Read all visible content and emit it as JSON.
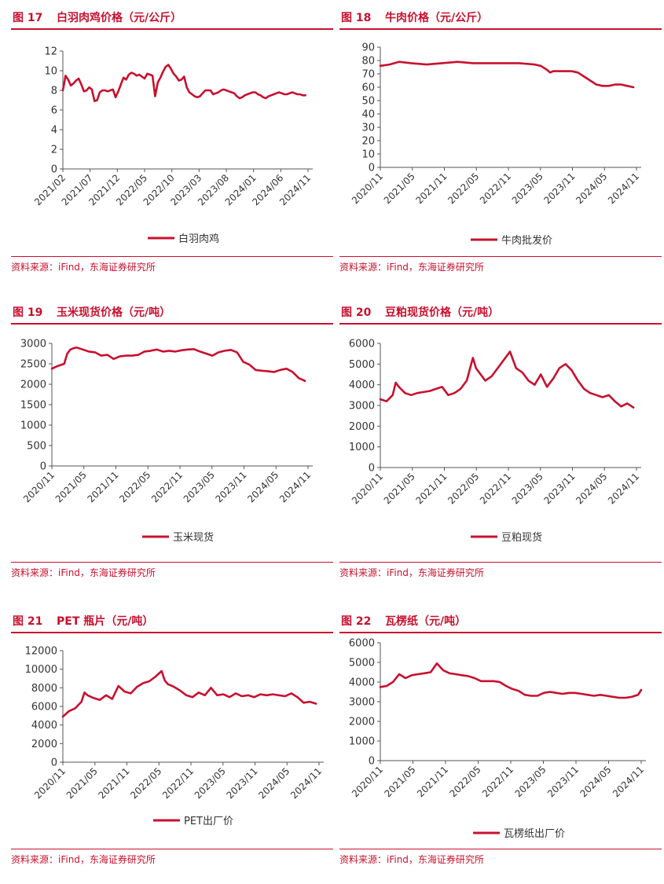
{
  "source_text": "资料来源：iFind，东海证券研究所",
  "colors": {
    "accent": "#c8102e",
    "axis": "#555555"
  },
  "chart_data": [
    {
      "id": "fig17",
      "number": "图 17",
      "title": "白羽肉鸡价格（元/公斤）",
      "type": "line",
      "ylim": [
        0,
        12
      ],
      "yticks": [
        0,
        2,
        4,
        6,
        8,
        10,
        12
      ],
      "xlabels": [
        "2021/02",
        "2021/07",
        "2021/12",
        "2022/05",
        "2022/10",
        "2023/03",
        "2023/08",
        "2024/01",
        "2024/06",
        "2024/11"
      ],
      "xrange": [
        0,
        9.3
      ],
      "series": [
        {
          "name": "白羽肉鸡",
          "x": [
            0,
            0.05,
            0.1,
            0.2,
            0.3,
            0.4,
            0.5,
            0.6,
            0.7,
            0.8,
            0.9,
            1.0,
            1.1,
            1.2,
            1.3,
            1.4,
            1.5,
            1.6,
            1.7,
            1.8,
            1.9,
            2.0,
            2.1,
            2.2,
            2.3,
            2.4,
            2.5,
            2.6,
            2.7,
            2.8,
            2.9,
            3.0,
            3.1,
            3.2,
            3.3,
            3.4,
            3.5,
            3.6,
            3.7,
            3.8,
            3.9,
            4.0,
            4.1,
            4.2,
            4.3,
            4.4,
            4.5,
            4.6,
            4.7,
            4.8,
            4.9,
            5.0,
            5.1,
            5.2,
            5.3,
            5.4,
            5.5,
            5.6,
            5.7,
            5.8,
            5.9,
            6.0,
            6.1,
            6.2,
            6.3,
            6.4,
            6.5,
            6.6,
            6.7,
            6.8,
            6.9,
            7.0,
            7.1,
            7.2,
            7.3,
            7.4,
            7.5,
            7.6,
            7.7,
            7.8,
            7.9,
            8.0,
            8.1,
            8.2,
            8.3,
            8.4,
            8.5,
            8.6,
            8.7,
            8.8,
            8.9,
            9.0,
            9.1,
            9.2
          ],
          "y": [
            8.0,
            8.7,
            9.5,
            9.1,
            8.5,
            8.7,
            9.0,
            9.2,
            8.6,
            7.9,
            8.0,
            8.3,
            8.1,
            6.9,
            7.0,
            7.8,
            8.0,
            8.0,
            7.9,
            8.0,
            8.1,
            7.3,
            7.9,
            8.6,
            9.3,
            9.1,
            9.6,
            9.8,
            9.7,
            9.5,
            9.6,
            9.4,
            9.2,
            9.7,
            9.6,
            9.5,
            7.4,
            8.8,
            9.3,
            9.9,
            10.4,
            10.6,
            10.2,
            9.7,
            9.4,
            9.0,
            9.1,
            9.4,
            8.3,
            7.8,
            7.6,
            7.4,
            7.3,
            7.4,
            7.7,
            8.0,
            8.0,
            8.0,
            7.6,
            7.7,
            7.8,
            8.0,
            8.1,
            8.0,
            7.9,
            7.8,
            7.7,
            7.4,
            7.2,
            7.3,
            7.5,
            7.6,
            7.7,
            7.8,
            7.8,
            7.6,
            7.5,
            7.3,
            7.2,
            7.4,
            7.5,
            7.6,
            7.7,
            7.8,
            7.7,
            7.6,
            7.6,
            7.7,
            7.8,
            7.7,
            7.6,
            7.6,
            7.5,
            7.5
          ]
        }
      ]
    },
    {
      "id": "fig18",
      "number": "图 18",
      "title": "牛肉价格（元/公斤）",
      "type": "line",
      "ylim": [
        0,
        90
      ],
      "yticks": [
        0,
        10,
        20,
        30,
        40,
        50,
        60,
        70,
        80,
        90
      ],
      "xlabels": [
        "2020/11",
        "2021/05",
        "2021/11",
        "2022/05",
        "2022/11",
        "2023/05",
        "2023/11",
        "2024/05",
        "2024/11"
      ],
      "xrange": [
        0,
        8.3
      ],
      "series": [
        {
          "name": "牛肉批发价",
          "x": [
            0,
            0.3,
            0.6,
            1.0,
            1.5,
            2.0,
            2.5,
            3.0,
            3.5,
            4.0,
            4.5,
            5.0,
            5.2,
            5.4,
            5.5,
            5.6,
            5.8,
            6.0,
            6.2,
            6.4,
            6.6,
            6.8,
            7.0,
            7.2,
            7.4,
            7.6,
            7.8,
            8.0,
            8.2
          ],
          "y": [
            76,
            77,
            79,
            78,
            77,
            78,
            79,
            78,
            78,
            78,
            78,
            77,
            76,
            73,
            71,
            72,
            72,
            72,
            72,
            71,
            68,
            65,
            62,
            61,
            61,
            62,
            62,
            61,
            60
          ]
        }
      ]
    },
    {
      "id": "fig19",
      "number": "图 19",
      "title": "玉米现货价格（元/吨）",
      "type": "line",
      "ylim": [
        0,
        3000
      ],
      "yticks": [
        0,
        500,
        1000,
        1500,
        2000,
        2500,
        3000
      ],
      "xlabels": [
        "2020/11",
        "2021/05",
        "2021/11",
        "2022/05",
        "2022/11",
        "2023/05",
        "2023/11",
        "2024/05",
        "2024/11"
      ],
      "xrange": [
        0,
        8.3
      ],
      "series": [
        {
          "name": "玉米现货",
          "x": [
            0,
            0.2,
            0.4,
            0.5,
            0.6,
            0.7,
            0.8,
            1.0,
            1.2,
            1.4,
            1.6,
            1.8,
            2.0,
            2.2,
            2.4,
            2.6,
            2.8,
            3.0,
            3.2,
            3.4,
            3.6,
            3.8,
            4.0,
            4.2,
            4.4,
            4.6,
            4.8,
            5.0,
            5.2,
            5.4,
            5.6,
            5.8,
            6.0,
            6.2,
            6.4,
            6.6,
            6.8,
            7.0,
            7.2,
            7.4,
            7.6,
            7.8,
            8.0,
            8.2
          ],
          "y": [
            2380,
            2450,
            2500,
            2750,
            2850,
            2880,
            2900,
            2850,
            2800,
            2780,
            2700,
            2720,
            2620,
            2680,
            2700,
            2700,
            2720,
            2800,
            2820,
            2850,
            2800,
            2820,
            2800,
            2830,
            2850,
            2860,
            2800,
            2750,
            2700,
            2780,
            2820,
            2840,
            2780,
            2550,
            2480,
            2350,
            2330,
            2320,
            2300,
            2350,
            2380,
            2300,
            2150,
            2080
          ]
        }
      ]
    },
    {
      "id": "fig20",
      "number": "图 20",
      "title": "豆粕现货价格（元/吨）",
      "type": "line",
      "ylim": [
        0,
        6000
      ],
      "yticks": [
        0,
        1000,
        2000,
        3000,
        4000,
        5000,
        6000
      ],
      "xlabels": [
        "2020/11",
        "2021/05",
        "2021/11",
        "2022/05",
        "2022/11",
        "2023/05",
        "2023/11",
        "2024/05",
        "2024/11"
      ],
      "xrange": [
        0,
        8.3
      ],
      "series": [
        {
          "name": "豆粕现货",
          "x": [
            0,
            0.2,
            0.4,
            0.5,
            0.6,
            0.8,
            1.0,
            1.2,
            1.4,
            1.6,
            1.8,
            2.0,
            2.2,
            2.4,
            2.6,
            2.8,
            3.0,
            3.1,
            3.2,
            3.3,
            3.4,
            3.6,
            3.8,
            4.0,
            4.2,
            4.4,
            4.6,
            4.8,
            5.0,
            5.2,
            5.4,
            5.6,
            5.8,
            6.0,
            6.2,
            6.4,
            6.6,
            6.8,
            7.0,
            7.2,
            7.4,
            7.6,
            7.8,
            8.0,
            8.2
          ],
          "y": [
            3300,
            3200,
            3500,
            4100,
            3900,
            3600,
            3500,
            3600,
            3650,
            3700,
            3800,
            3900,
            3500,
            3600,
            3800,
            4200,
            5300,
            4800,
            4600,
            4400,
            4200,
            4400,
            4800,
            5200,
            5600,
            4800,
            4600,
            4200,
            4000,
            4500,
            3900,
            4300,
            4800,
            5000,
            4700,
            4200,
            3800,
            3600,
            3500,
            3400,
            3500,
            3200,
            2950,
            3100,
            2900
          ]
        }
      ]
    },
    {
      "id": "fig21",
      "number": "图 21",
      "title": "PET 瓶片（元/吨）",
      "type": "line",
      "ylim": [
        0,
        12000
      ],
      "yticks": [
        0,
        2000,
        4000,
        6000,
        8000,
        10000,
        12000
      ],
      "xlabels": [
        "2020/11",
        "2021/05",
        "2021/11",
        "2022/05",
        "2022/11",
        "2023/05",
        "2023/11",
        "2024/05",
        "2024/11"
      ],
      "xrange": [
        0,
        8.3
      ],
      "series": [
        {
          "name": "PET出厂价",
          "x": [
            0,
            0.2,
            0.4,
            0.6,
            0.7,
            0.8,
            1.0,
            1.2,
            1.4,
            1.6,
            1.8,
            2.0,
            2.2,
            2.4,
            2.6,
            2.8,
            3.0,
            3.2,
            3.3,
            3.4,
            3.6,
            3.8,
            4.0,
            4.2,
            4.4,
            4.6,
            4.8,
            5.0,
            5.2,
            5.4,
            5.6,
            5.8,
            6.0,
            6.2,
            6.4,
            6.6,
            6.8,
            7.0,
            7.2,
            7.4,
            7.6,
            7.8,
            8.0,
            8.2
          ],
          "y": [
            4900,
            5500,
            5800,
            6500,
            7500,
            7200,
            6900,
            6700,
            7200,
            6800,
            8200,
            7600,
            7400,
            8100,
            8500,
            8700,
            9200,
            9800,
            8800,
            8400,
            8100,
            7700,
            7200,
            7000,
            7500,
            7200,
            8000,
            7200,
            7300,
            7000,
            7400,
            7100,
            7200,
            7000,
            7300,
            7200,
            7300,
            7200,
            7100,
            7400,
            7000,
            6400,
            6500,
            6300
          ]
        }
      ]
    },
    {
      "id": "fig22",
      "number": "图 22",
      "title": "瓦楞纸（元/吨）",
      "type": "line",
      "ylim": [
        0,
        6000
      ],
      "yticks": [
        0,
        1000,
        2000,
        3000,
        4000,
        5000,
        6000
      ],
      "xlabels": [
        "2020/11",
        "2021/05",
        "2021/11",
        "2022/05",
        "2022/11",
        "2023/05",
        "2023/11",
        "2024/05",
        "2024/11"
      ],
      "xrange": [
        0,
        8.3
      ],
      "series": [
        {
          "name": "瓦楞纸出厂价",
          "x": [
            0,
            0.2,
            0.4,
            0.6,
            0.8,
            1.0,
            1.2,
            1.4,
            1.6,
            1.8,
            2.0,
            2.2,
            2.4,
            2.6,
            2.8,
            3.0,
            3.2,
            3.4,
            3.6,
            3.8,
            4.0,
            4.2,
            4.4,
            4.6,
            4.8,
            5.0,
            5.2,
            5.4,
            5.6,
            5.8,
            6.0,
            6.2,
            6.4,
            6.6,
            6.8,
            7.0,
            7.2,
            7.4,
            7.6,
            7.8,
            8.0,
            8.2,
            8.3
          ],
          "y": [
            3750,
            3800,
            4000,
            4400,
            4200,
            4350,
            4400,
            4450,
            4500,
            4950,
            4600,
            4450,
            4400,
            4350,
            4300,
            4200,
            4050,
            4050,
            4050,
            4000,
            3800,
            3650,
            3550,
            3350,
            3300,
            3300,
            3450,
            3500,
            3450,
            3400,
            3450,
            3450,
            3400,
            3350,
            3300,
            3350,
            3300,
            3250,
            3200,
            3200,
            3250,
            3350,
            3600
          ]
        }
      ]
    }
  ]
}
